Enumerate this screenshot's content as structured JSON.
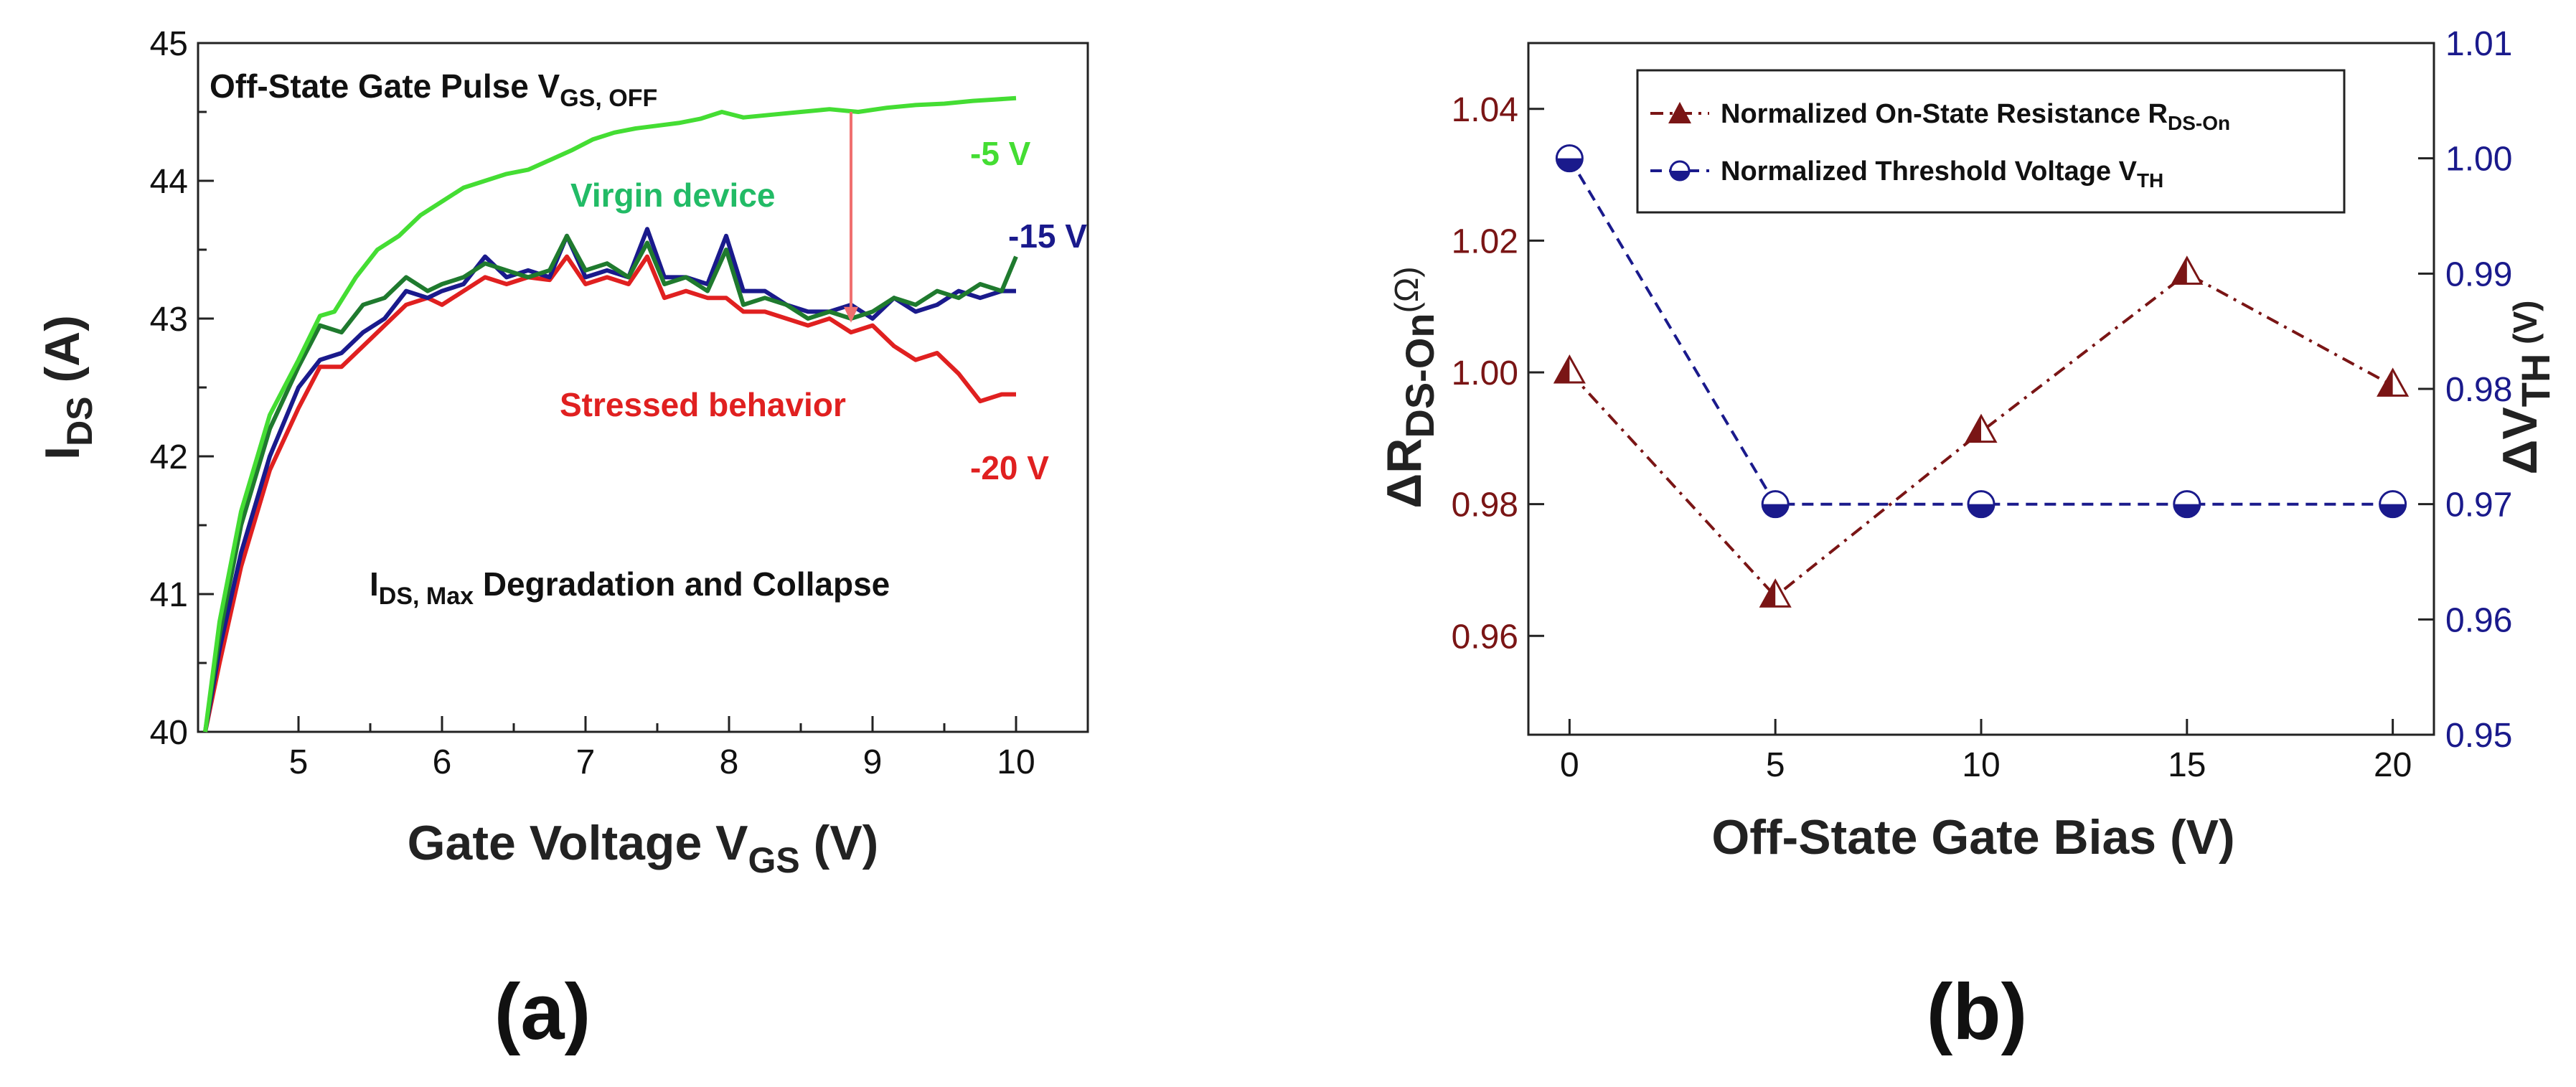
{
  "chart_data": [
    {
      "type": "line",
      "panel_label": "(a)",
      "xlabel": "Gate Voltage V",
      "xlabel_sub": "GS",
      "xlabel_unit": " (V)",
      "ylabel": "I",
      "ylabel_sub": "DS",
      "ylabel_unit": " (A)",
      "xlim": [
        4.3,
        10.5
      ],
      "ylim": [
        40,
        45
      ],
      "xticks": [
        5,
        6,
        7,
        8,
        9,
        10
      ],
      "yticks": [
        40,
        41,
        42,
        43,
        44,
        45
      ],
      "colors": {
        "neg5": "#44dd33",
        "neg15": "#1a1a8c",
        "neg20": "#e02020",
        "virgin": "#1f7a2e",
        "arrow": "#f07070",
        "virgin_text": "#22bb66",
        "stressed_text": "#e02020"
      },
      "series": [
        {
          "name": "-5 V",
          "key": "neg5",
          "x": [
            4.35,
            4.45,
            4.6,
            4.8,
            5.0,
            5.15,
            5.25,
            5.4,
            5.55,
            5.7,
            5.85,
            6.0,
            6.15,
            6.3,
            6.45,
            6.6,
            6.75,
            6.9,
            7.05,
            7.2,
            7.35,
            7.5,
            7.65,
            7.8,
            7.95,
            8.1,
            8.3,
            8.5,
            8.7,
            8.9,
            9.1,
            9.3,
            9.5,
            9.7,
            9.85,
            10.0
          ],
          "values": [
            40.0,
            40.8,
            41.6,
            42.3,
            42.7,
            43.02,
            43.05,
            43.3,
            43.5,
            43.6,
            43.75,
            43.85,
            43.95,
            44.0,
            44.05,
            44.08,
            44.15,
            44.22,
            44.3,
            44.35,
            44.38,
            44.4,
            44.42,
            44.45,
            44.5,
            44.46,
            44.48,
            44.5,
            44.52,
            44.5,
            44.53,
            44.55,
            44.56,
            44.58,
            44.59,
            44.6
          ]
        },
        {
          "name": "-15 V",
          "key": "neg15",
          "x": [
            4.35,
            4.45,
            4.6,
            4.8,
            5.0,
            5.15,
            5.3,
            5.45,
            5.6,
            5.75,
            5.9,
            6.0,
            6.15,
            6.3,
            6.45,
            6.6,
            6.75,
            6.87,
            7.0,
            7.15,
            7.3,
            7.43,
            7.55,
            7.7,
            7.85,
            7.98,
            8.1,
            8.25,
            8.4,
            8.55,
            8.7,
            8.85,
            9.0,
            9.15,
            9.3,
            9.45,
            9.6,
            9.75,
            9.9,
            10.0
          ],
          "values": [
            40.0,
            40.6,
            41.3,
            42.0,
            42.5,
            42.7,
            42.75,
            42.9,
            43.0,
            43.2,
            43.15,
            43.2,
            43.25,
            43.45,
            43.3,
            43.35,
            43.3,
            43.6,
            43.3,
            43.35,
            43.3,
            43.65,
            43.3,
            43.3,
            43.25,
            43.6,
            43.2,
            43.2,
            43.1,
            43.05,
            43.05,
            43.1,
            43.0,
            43.15,
            43.05,
            43.1,
            43.2,
            43.15,
            43.2,
            43.2
          ]
        },
        {
          "name": "-20 V",
          "key": "neg20",
          "x": [
            4.35,
            4.45,
            4.6,
            4.8,
            5.0,
            5.15,
            5.3,
            5.45,
            5.6,
            5.75,
            5.9,
            6.0,
            6.15,
            6.3,
            6.45,
            6.6,
            6.75,
            6.87,
            7.0,
            7.15,
            7.3,
            7.43,
            7.55,
            7.7,
            7.85,
            7.98,
            8.1,
            8.25,
            8.4,
            8.55,
            8.7,
            8.85,
            9.0,
            9.15,
            9.3,
            9.45,
            9.6,
            9.75,
            9.9,
            10.0
          ],
          "values": [
            40.0,
            40.5,
            41.2,
            41.9,
            42.35,
            42.65,
            42.65,
            42.8,
            42.95,
            43.1,
            43.15,
            43.1,
            43.2,
            43.3,
            43.25,
            43.3,
            43.28,
            43.45,
            43.25,
            43.3,
            43.25,
            43.45,
            43.15,
            43.2,
            43.15,
            43.15,
            43.05,
            43.05,
            43.0,
            42.95,
            43.0,
            42.9,
            42.95,
            42.8,
            42.7,
            42.75,
            42.6,
            42.4,
            42.45,
            42.45
          ]
        },
        {
          "name": "Virgin device",
          "key": "virgin",
          "x": [
            4.35,
            4.45,
            4.6,
            4.8,
            5.0,
            5.15,
            5.3,
            5.45,
            5.6,
            5.75,
            5.9,
            6.0,
            6.15,
            6.3,
            6.45,
            6.6,
            6.75,
            6.87,
            7.0,
            7.15,
            7.3,
            7.43,
            7.55,
            7.7,
            7.85,
            7.98,
            8.1,
            8.25,
            8.4,
            8.55,
            8.7,
            8.85,
            9.0,
            9.15,
            9.3,
            9.45,
            9.6,
            9.75,
            9.9,
            10.0
          ],
          "values": [
            40.0,
            40.7,
            41.5,
            42.2,
            42.65,
            42.95,
            42.9,
            43.1,
            43.15,
            43.3,
            43.2,
            43.25,
            43.3,
            43.4,
            43.35,
            43.3,
            43.35,
            43.6,
            43.35,
            43.4,
            43.3,
            43.55,
            43.25,
            43.3,
            43.2,
            43.5,
            43.1,
            43.15,
            43.1,
            43.0,
            43.05,
            43.0,
            43.05,
            43.15,
            43.1,
            43.2,
            43.15,
            43.25,
            43.2,
            43.45
          ]
        }
      ],
      "annotations": {
        "title_main": "Off-State Gate Pulse V",
        "title_sub": "GS, OFF",
        "virgin": "Virgin device",
        "stressed": "Stressed behavior",
        "label_neg5": "-5 V",
        "label_neg15": "-15 V",
        "label_neg20": "-20 V",
        "degradation_main": "I",
        "degradation_sub": "DS, Max",
        "degradation_rest": " Degradation and Collapse"
      },
      "arrow": {
        "x": 8.85,
        "from": 44.5,
        "to": 42.97
      }
    },
    {
      "type": "line",
      "panel_label": "(b)",
      "xlabel": "Off-State Gate Bias (V)",
      "ylabel_left": "ΔR",
      "ylabel_left_sub": "DS-On",
      "ylabel_left_unit": "(Ω)",
      "ylabel_right": "ΔV",
      "ylabel_right_sub": "TH",
      "ylabel_right_unit": " (V)",
      "xlim": [
        -1,
        21
      ],
      "ylim_left": [
        0.945,
        1.05
      ],
      "ylim_right": [
        0.95,
        1.01
      ],
      "xticks": [
        0,
        5,
        10,
        15,
        20
      ],
      "yticks_left": [
        0.96,
        0.98,
        1.0,
        1.02,
        1.04
      ],
      "yticks_left_labels": [
        "0.96",
        "0.98",
        "1.00",
        "1.02",
        "1.04"
      ],
      "yticks_right": [
        0.95,
        0.96,
        0.97,
        0.98,
        0.99,
        1.0,
        1.01
      ],
      "yticks_right_labels": [
        "0.95",
        "0.96",
        "0.97",
        "0.98",
        "0.99",
        "1.00",
        "1.01"
      ],
      "colors": {
        "left_axis": "#7a1515",
        "right_axis": "#1a1a8c",
        "rds": "#7a1515",
        "vth": "#1a1a8c"
      },
      "series": [
        {
          "name": "Normalized On-State Resistance R",
          "name_sub": "DS-On",
          "key": "rds",
          "axis": "left",
          "x": [
            0,
            5,
            10,
            15,
            20
          ],
          "values": [
            1.0,
            0.966,
            0.991,
            1.015,
            0.998
          ]
        },
        {
          "name": "Normalized Threshold Voltage V",
          "name_sub": "TH",
          "key": "vth",
          "axis": "right",
          "x": [
            0,
            5,
            10,
            15,
            20
          ],
          "values": [
            1.0,
            0.97,
            0.97,
            0.97,
            0.97
          ]
        }
      ],
      "legend_position": "top"
    }
  ]
}
